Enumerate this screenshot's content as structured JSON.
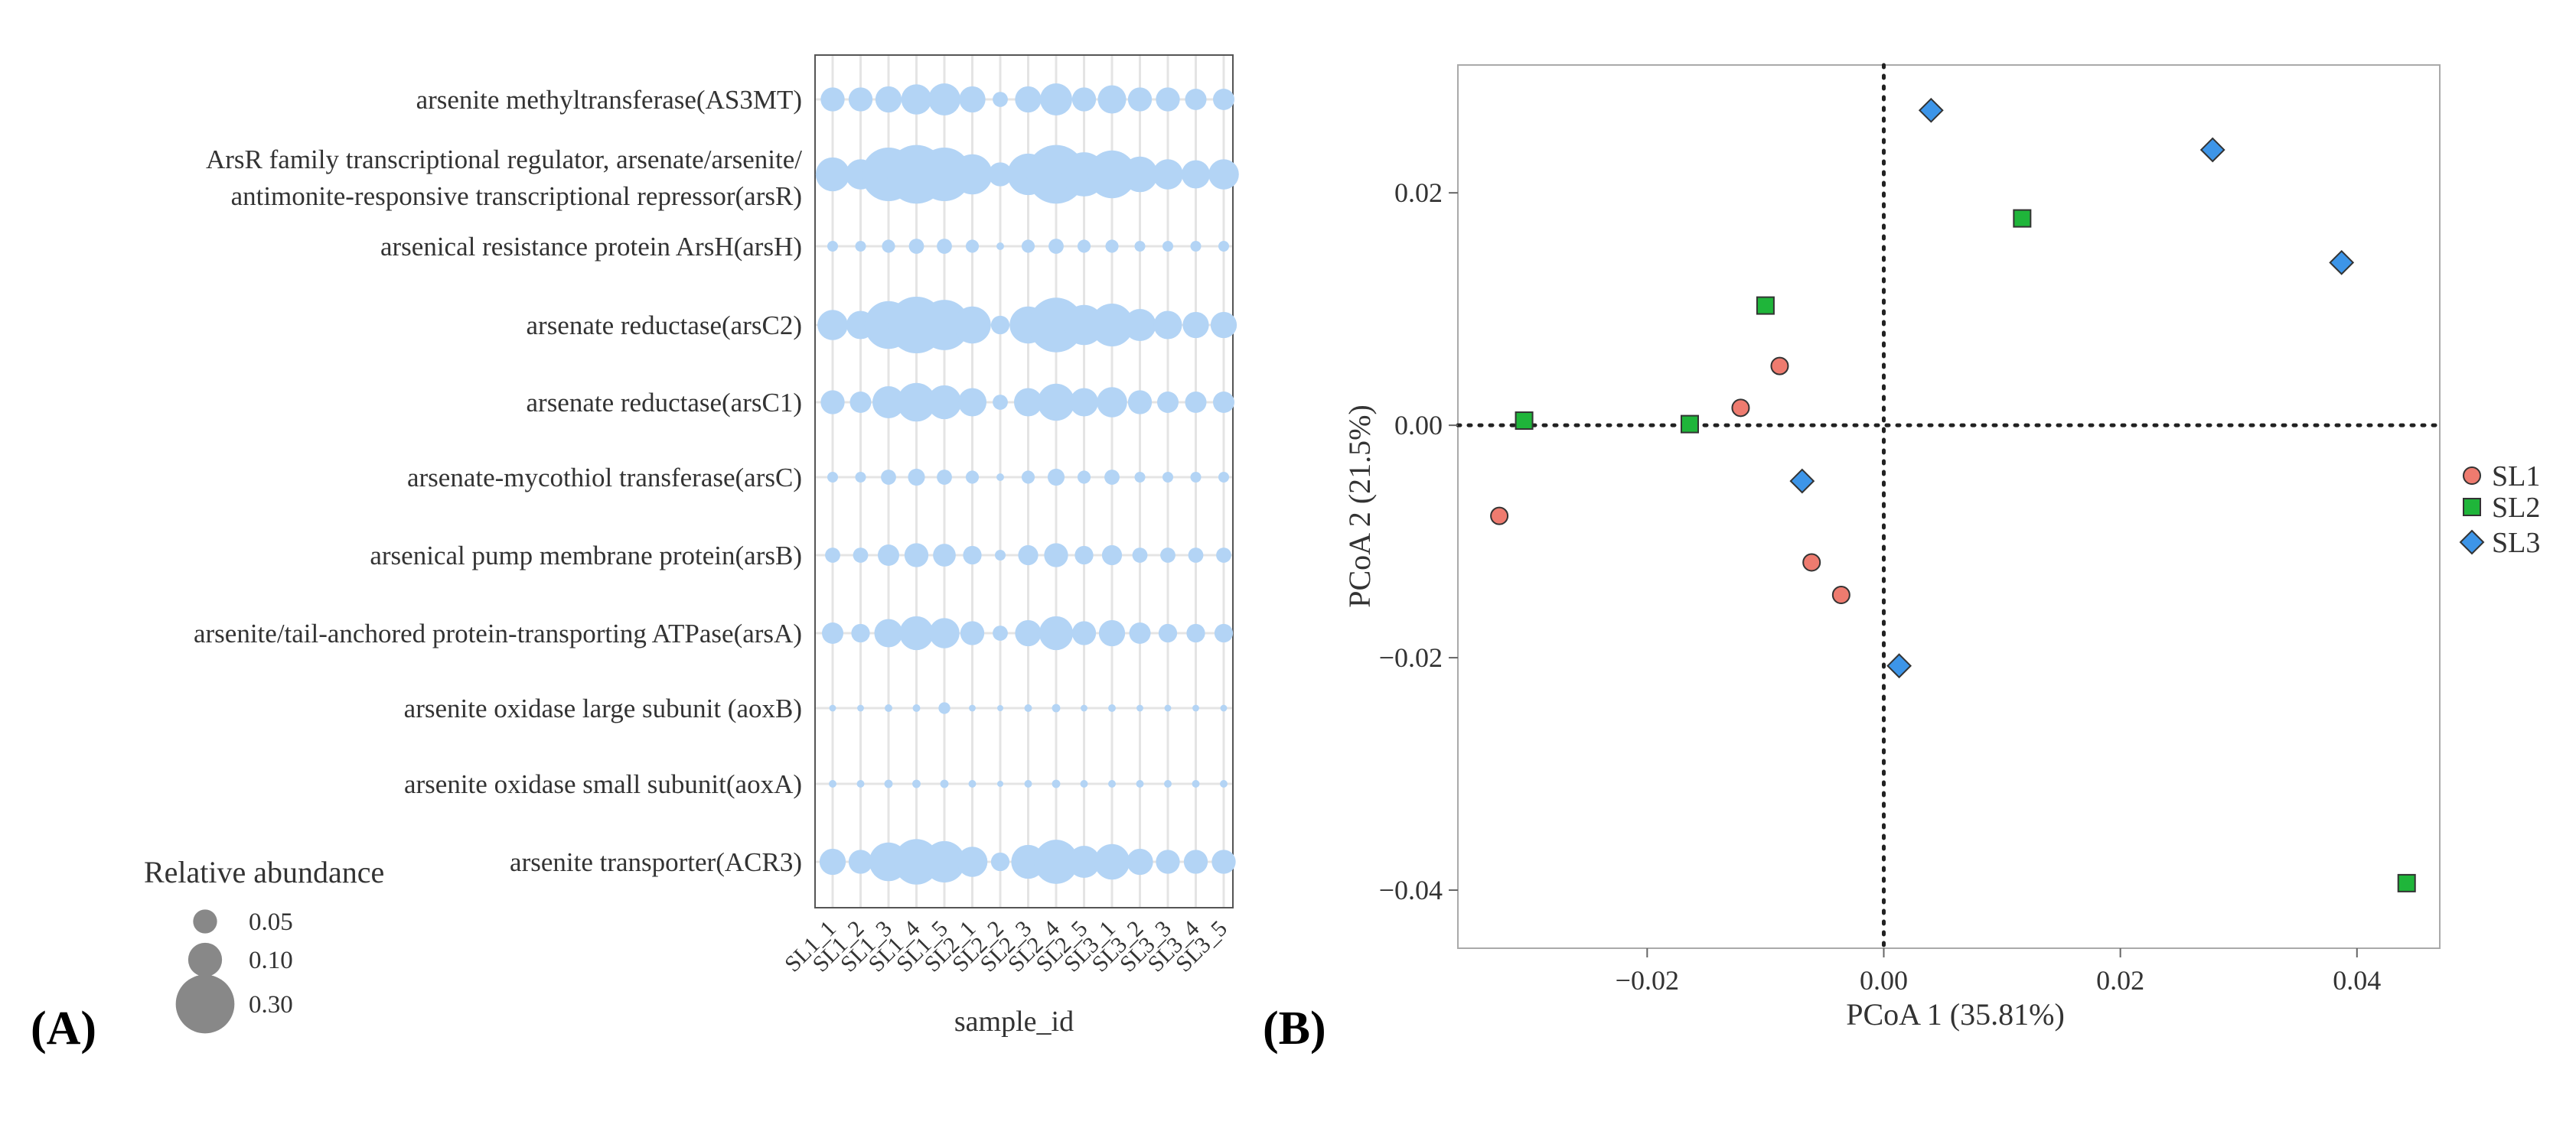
{
  "panel_labels": {
    "a": "(A)",
    "b": "(B)"
  },
  "colors": {
    "bubble": "#b3d4f5",
    "sl1": "#ee7b6f",
    "sl2": "#1fb53a",
    "sl3": "#3d95e8"
  },
  "chart_data": [
    {
      "type": "bubble",
      "xlabel": "sample_id",
      "size_legend": {
        "title": "Relative abundance",
        "entries": [
          {
            "label": "0.05",
            "value": 0.05
          },
          {
            "label": "0.10",
            "value": 0.1
          },
          {
            "label": "0.30",
            "value": 0.3
          }
        ]
      },
      "x": [
        "SL1_1",
        "SL1_2",
        "SL1_3",
        "SL1_4",
        "SL1_5",
        "SL2_1",
        "SL2_2",
        "SL2_3",
        "SL2_4",
        "SL2_5",
        "SL3_1",
        "SL3_2",
        "SL3_3",
        "SL3_4",
        "SL3_5"
      ],
      "rows": [
        {
          "label": [
            "arsenite methyltransferase(AS3MT)"
          ],
          "values": [
            0.05,
            0.05,
            0.06,
            0.08,
            0.09,
            0.06,
            0.02,
            0.06,
            0.09,
            0.05,
            0.07,
            0.05,
            0.05,
            0.04,
            0.04
          ]
        },
        {
          "label": [
            "ArsR family transcriptional regulator, arsenate/arsenite/",
            "antimonite-responsive transcriptional repressor(arsR)"
          ],
          "values": [
            0.1,
            0.08,
            0.25,
            0.3,
            0.25,
            0.14,
            0.05,
            0.15,
            0.3,
            0.17,
            0.2,
            0.11,
            0.08,
            0.07,
            0.08
          ]
        },
        {
          "label": [
            "arsenical resistance protein ArsH(arsH)"
          ],
          "values": [
            0.01,
            0.01,
            0.015,
            0.02,
            0.02,
            0.015,
            0.005,
            0.015,
            0.02,
            0.015,
            0.015,
            0.01,
            0.01,
            0.01,
            0.01
          ]
        },
        {
          "label": [
            "arsenate reductase(arsC2)"
          ],
          "values": [
            0.08,
            0.07,
            0.2,
            0.28,
            0.22,
            0.12,
            0.03,
            0.12,
            0.26,
            0.14,
            0.16,
            0.09,
            0.07,
            0.06,
            0.06
          ]
        },
        {
          "label": [
            "arsenate reductase(arsC1)"
          ],
          "values": [
            0.05,
            0.04,
            0.09,
            0.13,
            0.1,
            0.07,
            0.02,
            0.07,
            0.12,
            0.07,
            0.08,
            0.05,
            0.04,
            0.04,
            0.04
          ]
        },
        {
          "label": [
            "arsenate-mycothiol transferase(arsC)"
          ],
          "values": [
            0.01,
            0.01,
            0.02,
            0.025,
            0.02,
            0.015,
            0.005,
            0.015,
            0.025,
            0.015,
            0.02,
            0.01,
            0.01,
            0.01,
            0.01
          ]
        },
        {
          "label": [
            "arsenical pump membrane protein(arsB)"
          ],
          "values": [
            0.02,
            0.02,
            0.04,
            0.05,
            0.045,
            0.03,
            0.01,
            0.035,
            0.05,
            0.03,
            0.035,
            0.02,
            0.02,
            0.02,
            0.02
          ]
        },
        {
          "label": [
            "arsenite/tail-anchored protein-transporting ATPase(arsA)"
          ],
          "values": [
            0.04,
            0.03,
            0.07,
            0.1,
            0.08,
            0.05,
            0.02,
            0.06,
            0.1,
            0.05,
            0.06,
            0.04,
            0.03,
            0.03,
            0.03
          ]
        },
        {
          "label": [
            "arsenite oxidase large subunit (aoxB)"
          ],
          "values": [
            0.004,
            0.004,
            0.005,
            0.005,
            0.012,
            0.004,
            0.002,
            0.005,
            0.006,
            0.004,
            0.005,
            0.004,
            0.004,
            0.004,
            0.004
          ]
        },
        {
          "label": [
            "arsenite oxidase small subunit(aoxA)"
          ],
          "values": [
            0.005,
            0.005,
            0.006,
            0.006,
            0.006,
            0.005,
            0.002,
            0.005,
            0.006,
            0.005,
            0.005,
            0.005,
            0.005,
            0.005,
            0.005
          ]
        },
        {
          "label": [
            "arsenite transporter(ACR3)"
          ],
          "values": [
            0.06,
            0.05,
            0.13,
            0.18,
            0.15,
            0.08,
            0.03,
            0.1,
            0.17,
            0.09,
            0.11,
            0.06,
            0.05,
            0.05,
            0.05
          ]
        }
      ]
    },
    {
      "type": "scatter",
      "xlabel": "PCoA 1 (35.81%)",
      "ylabel": "PCoA 2 (21.5%)",
      "xlim": [
        -0.036,
        0.047
      ],
      "ylim": [
        -0.045,
        0.031
      ],
      "xticks": [
        {
          "value": -0.02,
          "label": "−0.02"
        },
        {
          "value": 0.0,
          "label": "0.00"
        },
        {
          "value": 0.02,
          "label": "0.02"
        },
        {
          "value": 0.04,
          "label": "0.04"
        }
      ],
      "yticks": [
        {
          "value": 0.02,
          "label": "0.02"
        },
        {
          "value": 0.0,
          "label": "0.00"
        },
        {
          "value": -0.02,
          "label": "−0.02"
        },
        {
          "value": -0.04,
          "label": "−0.04"
        }
      ],
      "reference_lines": {
        "x": 0,
        "y": 0,
        "style": "dotted"
      },
      "legend": {
        "position": "right"
      },
      "series": [
        {
          "name": "SL1",
          "marker": "circle",
          "color": "#ee7b6f",
          "points": [
            [
              -0.0325,
              -0.0078
            ],
            [
              -0.0121,
              0.0015
            ],
            [
              -0.0088,
              0.0051
            ],
            [
              -0.0061,
              -0.0118
            ],
            [
              -0.0036,
              -0.0146
            ]
          ]
        },
        {
          "name": "SL2",
          "marker": "square",
          "color": "#1fb53a",
          "points": [
            [
              -0.0304,
              0.0004
            ],
            [
              -0.0164,
              0.0001
            ],
            [
              -0.01,
              0.0103
            ],
            [
              0.0117,
              0.0178
            ],
            [
              0.0442,
              -0.0394
            ]
          ]
        },
        {
          "name": "SL3",
          "marker": "diamond",
          "color": "#3d95e8",
          "points": [
            [
              0.004,
              0.0271
            ],
            [
              0.0278,
              0.0237
            ],
            [
              0.0387,
              0.014
            ],
            [
              -0.0069,
              -0.0048
            ],
            [
              0.0013,
              -0.0207
            ]
          ]
        }
      ]
    }
  ]
}
